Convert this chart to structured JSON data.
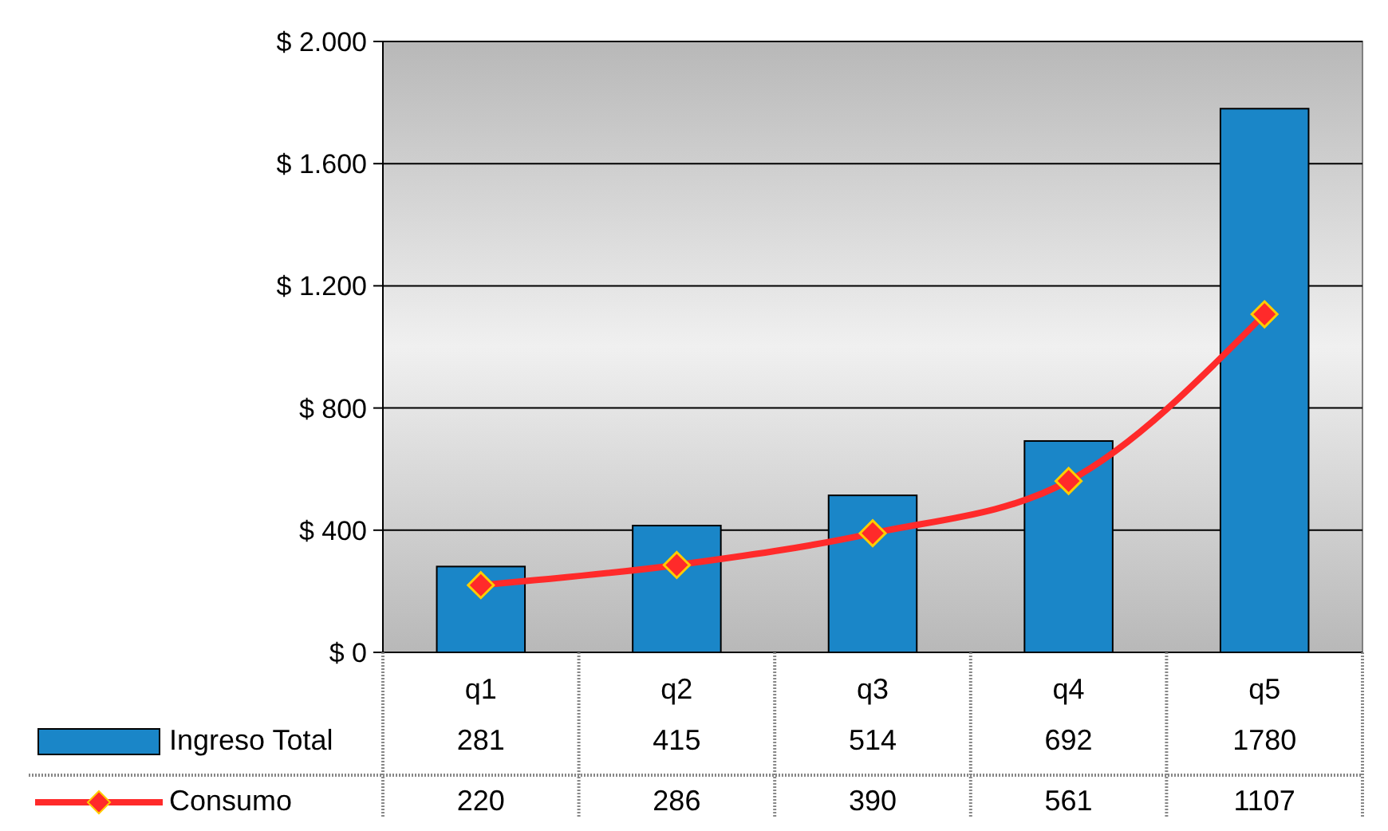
{
  "chart_data": {
    "type": "bar",
    "categories": [
      "q1",
      "q2",
      "q3",
      "q4",
      "q5"
    ],
    "series": [
      {
        "name": "Ingreso Total",
        "color": "#1a86c8",
        "values": [
          281,
          415,
          514,
          692,
          1780
        ]
      },
      {
        "name": "Consumo",
        "type": "line",
        "color": "#ff2a2a",
        "values": [
          220,
          286,
          390,
          561,
          1107
        ]
      }
    ],
    "ylim": [
      0,
      2000
    ],
    "yticks": [
      {
        "value": 0,
        "label": "$ 0"
      },
      {
        "value": 400,
        "label": "$ 400"
      },
      {
        "value": 800,
        "label": "$ 800"
      },
      {
        "value": 1200,
        "label": "$ 1.200"
      },
      {
        "value": 1600,
        "label": "$ 1.600"
      },
      {
        "value": 2000,
        "label": "$ 2.000"
      }
    ],
    "grid": "y",
    "legend": "bottom",
    "data_labels": true,
    "marker": "diamond",
    "line_style": "solid"
  }
}
